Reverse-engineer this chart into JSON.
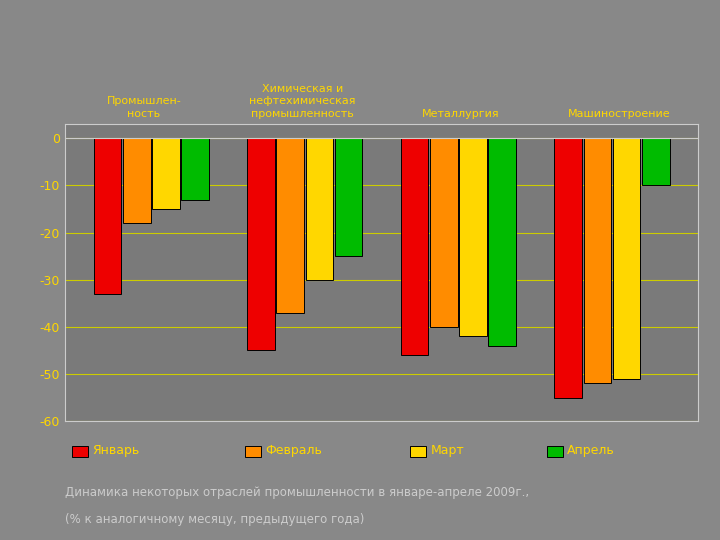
{
  "categories": [
    "Промышлен-\nность",
    "Химическая и\nнефтехимическая\nпромышленность",
    "Металлургия",
    "Машиностроение"
  ],
  "categories_top": [
    "Промышлен-\nность",
    "Химическая и\nнефтехимическая\nпромышленность",
    "Металлургия",
    "Машиностроение"
  ],
  "series": {
    "Январь": [
      -33,
      -45,
      -46,
      -55
    ],
    "Февраль": [
      -18,
      -37,
      -40,
      -52
    ],
    "Март": [
      -15,
      -30,
      -42,
      -51
    ],
    "Апрель": [
      -13,
      -25,
      -44,
      -10
    ]
  },
  "colors": {
    "Январь": "#EE0000",
    "Февраль": "#FF8C00",
    "Март": "#FFD700",
    "Апрель": "#00BB00"
  },
  "ylim": [
    -60,
    3
  ],
  "yticks": [
    0,
    -10,
    -20,
    -30,
    -40,
    -50,
    -60
  ],
  "background_color": "#888888",
  "plot_bg_color": "#7A7A7A",
  "grid_color": "#CCCC00",
  "bar_width": 0.19,
  "caption_line1": "Динамика некоторых отраслей промышленности в январе-апреле 2009г.,",
  "caption_line2": "(% к аналогичному месяцу, предыдущего года)",
  "caption_color": "#CCCCCC",
  "label_color": "#FFD700",
  "tick_color": "#FFD700",
  "border_color": "#CCCCCC"
}
